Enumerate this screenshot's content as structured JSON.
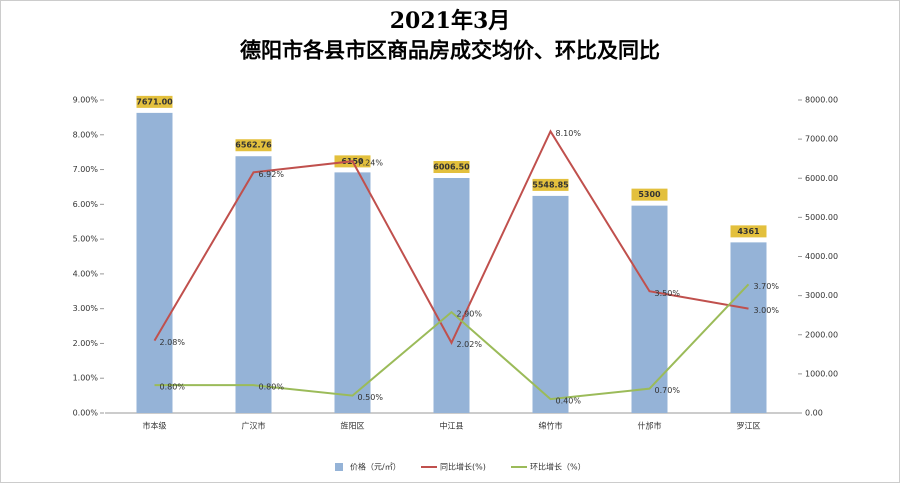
{
  "chart_data": {
    "type": "bar_line",
    "title": "2021年3月",
    "subtitle": "德阳市各县市区商品房成交均价、环比及同比",
    "categories": [
      "市本级",
      "广汉市",
      "旌阳区",
      "中江县",
      "绵竹市",
      "什邡市",
      "罗江区"
    ],
    "series": [
      {
        "name": "价格（元/㎡）",
        "color": "#95b3d7",
        "type": "bar",
        "axis": "y2",
        "values": [
          7671.0,
          6562.76,
          6150,
          6006.5,
          5548.85,
          5300,
          4361
        ],
        "value_labels": [
          "7671.00",
          "6562.76",
          "6150",
          "6006.50",
          "5548.85",
          "5300",
          "4361"
        ]
      },
      {
        "name": "同比增长(%)",
        "color": "#c0504d",
        "type": "line",
        "values": [
          2.08,
          6.92,
          7.24,
          2.02,
          8.1,
          3.5,
          3.0
        ],
        "value_labels": [
          "2.08%",
          "6.92%",
          "7.24%",
          "2.02%",
          "8.10%",
          "3.50%",
          "3.00%"
        ]
      },
      {
        "name": "环比增长（%）",
        "color": "#9bbb59",
        "type": "line",
        "values": [
          0.8,
          0.8,
          0.5,
          2.9,
          0.4,
          0.7,
          3.7
        ],
        "value_labels": [
          "0.80%",
          "0.80%",
          "0.50%",
          "2.90%",
          "0.40%",
          "0.70%",
          "3.70%"
        ]
      }
    ],
    "ylim": [
      0,
      9
    ],
    "yticks": [
      {
        "value": 0,
        "label": "0.00%"
      },
      {
        "value": 1,
        "label": "1.00%"
      },
      {
        "value": 2,
        "label": "2.00%"
      },
      {
        "value": 3,
        "label": "3.00%"
      },
      {
        "value": 4,
        "label": "4.00%"
      },
      {
        "value": 5,
        "label": "5.00%"
      },
      {
        "value": 6,
        "label": "6.00%"
      },
      {
        "value": 7,
        "label": "7.00%"
      },
      {
        "value": 8,
        "label": "8.00%"
      },
      {
        "value": 9,
        "label": "9.00%"
      }
    ],
    "y2lim": [
      0,
      8000
    ],
    "y2ticks": [
      {
        "value": 0,
        "label": "0.00"
      },
      {
        "value": 1000,
        "label": "1000.00"
      },
      {
        "value": 2000,
        "label": "2000.00"
      },
      {
        "value": 3000,
        "label": "3000.00"
      },
      {
        "value": 4000,
        "label": "4000.00"
      },
      {
        "value": 5000,
        "label": "5000.00"
      },
      {
        "value": 6000,
        "label": "6000.00"
      },
      {
        "value": 7000,
        "label": "7000.00"
      },
      {
        "value": 8000,
        "label": "8000.00"
      }
    ],
    "legend": "bottom"
  }
}
